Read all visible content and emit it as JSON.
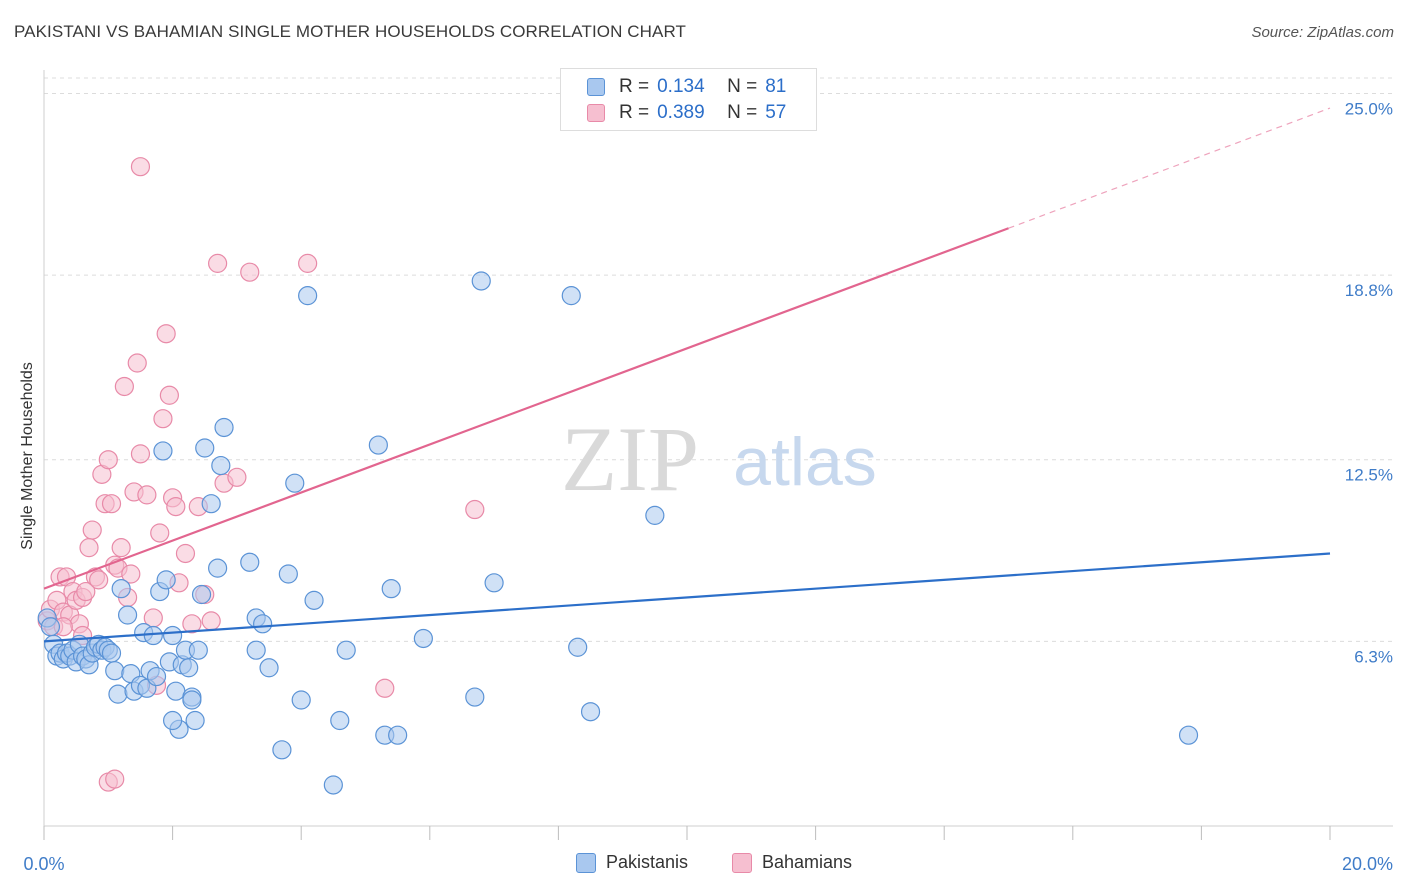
{
  "title": "PAKISTANI VS BAHAMIAN SINGLE MOTHER HOUSEHOLDS CORRELATION CHART",
  "source": "Source: ZipAtlas.com",
  "watermark": {
    "zip": "ZIP",
    "atlas": "atlas"
  },
  "legend": {
    "r_label": "R =",
    "n_label": "N =",
    "series": [
      {
        "name": "Pakistanis",
        "r": "0.134",
        "n": "81"
      },
      {
        "name": "Bahamians",
        "r": "0.389",
        "n": "57"
      }
    ]
  },
  "colors": {
    "blue_fill": "#a9c8ef",
    "blue_stroke": "#5b93d6",
    "blue_line": "#2c6fc9",
    "pink_fill": "#f6bfd0",
    "pink_stroke": "#e88aa8",
    "pink_line": "#e2658f",
    "axis_text": "#3f7cc8",
    "grid": "#dcdcdc"
  },
  "chart_data": {
    "type": "scatter",
    "title": "PAKISTANI VS BAHAMIAN SINGLE MOTHER HOUSEHOLDS CORRELATION CHART",
    "xlabel": "",
    "ylabel": "Single Mother Households",
    "xlim": [
      0,
      20
    ],
    "ylim": [
      0,
      25.8
    ],
    "x_tick_labels": [
      "0.0%",
      "20.0%"
    ],
    "y_ticks": [
      6.3,
      12.5,
      18.8,
      25.0
    ],
    "y_tick_labels": [
      "6.3%",
      "12.5%",
      "18.8%",
      "25.0%"
    ],
    "grid": true,
    "legend_position": "top-center",
    "series": [
      {
        "name": "Pakistanis",
        "trend": {
          "x": [
            0,
            20
          ],
          "y": [
            6.3,
            9.3
          ],
          "dashed_after": null
        },
        "points": [
          [
            0.05,
            7.1
          ],
          [
            0.1,
            6.8
          ],
          [
            0.15,
            6.2
          ],
          [
            0.2,
            5.8
          ],
          [
            0.25,
            5.9
          ],
          [
            0.3,
            5.7
          ],
          [
            0.35,
            5.9
          ],
          [
            0.4,
            5.8
          ],
          [
            0.45,
            6.0
          ],
          [
            0.5,
            5.6
          ],
          [
            0.55,
            6.2
          ],
          [
            0.6,
            5.8
          ],
          [
            0.65,
            5.7
          ],
          [
            0.7,
            5.5
          ],
          [
            0.75,
            5.9
          ],
          [
            0.8,
            6.1
          ],
          [
            0.85,
            6.2
          ],
          [
            0.9,
            6.0
          ],
          [
            0.95,
            6.1
          ],
          [
            1.0,
            6.0
          ],
          [
            1.05,
            5.9
          ],
          [
            1.1,
            5.3
          ],
          [
            1.15,
            4.5
          ],
          [
            1.2,
            8.1
          ],
          [
            1.3,
            7.2
          ],
          [
            1.35,
            5.2
          ],
          [
            1.4,
            4.6
          ],
          [
            1.5,
            4.8
          ],
          [
            1.55,
            6.6
          ],
          [
            1.6,
            4.7
          ],
          [
            1.65,
            5.3
          ],
          [
            1.7,
            6.5
          ],
          [
            1.75,
            5.1
          ],
          [
            1.8,
            8.0
          ],
          [
            1.85,
            12.8
          ],
          [
            1.9,
            8.4
          ],
          [
            1.95,
            5.6
          ],
          [
            2.0,
            6.5
          ],
          [
            2.05,
            4.6
          ],
          [
            2.1,
            3.3
          ],
          [
            2.15,
            5.5
          ],
          [
            2.2,
            6.0
          ],
          [
            2.25,
            5.4
          ],
          [
            2.3,
            4.4
          ],
          [
            2.35,
            3.6
          ],
          [
            2.4,
            6.0
          ],
          [
            2.45,
            7.9
          ],
          [
            2.5,
            12.9
          ],
          [
            2.6,
            11.0
          ],
          [
            2.7,
            8.8
          ],
          [
            2.75,
            12.3
          ],
          [
            2.8,
            13.6
          ],
          [
            3.2,
            9.0
          ],
          [
            3.3,
            7.1
          ],
          [
            3.4,
            6.9
          ],
          [
            3.5,
            5.4
          ],
          [
            3.7,
            2.6
          ],
          [
            3.8,
            8.6
          ],
          [
            3.9,
            11.7
          ],
          [
            4.0,
            4.3
          ],
          [
            4.2,
            7.7
          ],
          [
            4.5,
            1.4
          ],
          [
            5.2,
            13.0
          ],
          [
            5.4,
            8.1
          ],
          [
            5.9,
            6.4
          ],
          [
            6.7,
            4.4
          ],
          [
            7.0,
            8.3
          ],
          [
            8.3,
            6.1
          ],
          [
            8.5,
            3.9
          ],
          [
            9.5,
            10.6
          ],
          [
            4.6,
            3.6
          ],
          [
            4.7,
            6.0
          ],
          [
            4.1,
            18.1
          ],
          [
            5.3,
            3.1
          ],
          [
            5.5,
            3.1
          ],
          [
            6.8,
            18.6
          ],
          [
            8.2,
            18.1
          ],
          [
            2.3,
            4.3
          ],
          [
            3.3,
            6.0
          ],
          [
            2.0,
            3.6
          ],
          [
            17.8,
            3.1
          ]
        ]
      },
      {
        "name": "Bahamians",
        "trend": {
          "x": [
            0,
            15
          ],
          "y": [
            8.1,
            20.4
          ],
          "dashed_x_end": 20,
          "dashed_y_end": 24.5
        },
        "points": [
          [
            0.05,
            7.0
          ],
          [
            0.1,
            7.4
          ],
          [
            0.15,
            6.8
          ],
          [
            0.2,
            7.7
          ],
          [
            0.25,
            8.5
          ],
          [
            0.3,
            7.3
          ],
          [
            0.35,
            8.5
          ],
          [
            0.4,
            7.2
          ],
          [
            0.45,
            8.0
          ],
          [
            0.5,
            7.7
          ],
          [
            0.55,
            6.9
          ],
          [
            0.6,
            7.8
          ],
          [
            0.65,
            8.0
          ],
          [
            0.7,
            9.5
          ],
          [
            0.75,
            10.1
          ],
          [
            0.8,
            8.5
          ],
          [
            0.85,
            8.4
          ],
          [
            0.9,
            12.0
          ],
          [
            0.95,
            11.0
          ],
          [
            1.0,
            12.5
          ],
          [
            1.05,
            11.0
          ],
          [
            1.1,
            8.9
          ],
          [
            1.15,
            8.8
          ],
          [
            1.2,
            9.5
          ],
          [
            1.25,
            15.0
          ],
          [
            1.3,
            7.8
          ],
          [
            1.35,
            8.6
          ],
          [
            1.4,
            11.4
          ],
          [
            1.45,
            15.8
          ],
          [
            1.5,
            12.7
          ],
          [
            1.6,
            11.3
          ],
          [
            1.7,
            7.1
          ],
          [
            1.75,
            4.8
          ],
          [
            1.8,
            10.0
          ],
          [
            1.85,
            13.9
          ],
          [
            1.9,
            16.8
          ],
          [
            1.95,
            14.7
          ],
          [
            2.0,
            11.2
          ],
          [
            2.05,
            10.9
          ],
          [
            2.1,
            8.3
          ],
          [
            2.2,
            9.3
          ],
          [
            2.3,
            6.9
          ],
          [
            2.4,
            10.9
          ],
          [
            2.5,
            7.9
          ],
          [
            2.6,
            7.0
          ],
          [
            2.7,
            19.2
          ],
          [
            2.8,
            11.7
          ],
          [
            3.0,
            11.9
          ],
          [
            3.2,
            18.9
          ],
          [
            4.1,
            19.2
          ],
          [
            5.3,
            4.7
          ],
          [
            6.7,
            10.8
          ],
          [
            1.0,
            1.5
          ],
          [
            1.1,
            1.6
          ],
          [
            1.5,
            22.5
          ],
          [
            0.3,
            6.8
          ],
          [
            0.6,
            6.5
          ]
        ]
      }
    ]
  }
}
